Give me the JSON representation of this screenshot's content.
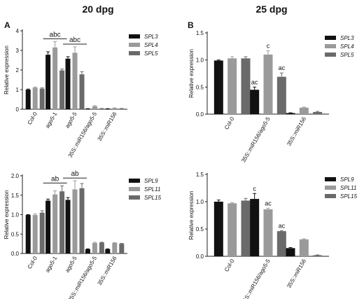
{
  "figure": {
    "col_titles": [
      "20 dpg",
      "25 dpg"
    ],
    "panel_letters": [
      "A",
      "B"
    ]
  },
  "colors": {
    "series": [
      "#111111",
      "#9a9a9a",
      "#6a6a6a"
    ]
  },
  "chart_data": [
    {
      "type": "bar",
      "ylabel": "Relative expression",
      "ylim": [
        0,
        4
      ],
      "yticks": [
        0,
        1,
        2,
        3,
        4
      ],
      "categories": [
        "Col-0",
        "ago5-1",
        "ago5-5",
        "35S::miR156/ago5-5",
        "35S::miR156"
      ],
      "series": [
        {
          "name": "SPL3",
          "values": [
            1.0,
            2.78,
            2.58,
            0.02,
            0.02
          ],
          "errors": [
            0.03,
            0.15,
            0.1,
            0.01,
            0.01
          ]
        },
        {
          "name": "SPL4",
          "values": [
            1.1,
            3.15,
            2.88,
            0.15,
            0.05
          ],
          "errors": [
            0.03,
            0.3,
            0.3,
            0.03,
            0.02
          ]
        },
        {
          "name": "SPL5",
          "values": [
            1.05,
            1.98,
            1.78,
            0.03,
            0.03
          ],
          "errors": [
            0.04,
            0.07,
            0.13,
            0.01,
            0.01
          ]
        }
      ],
      "annotations": [
        {
          "category": 1,
          "text": "abc"
        },
        {
          "category": 2,
          "text": "abc"
        }
      ],
      "legend": "right"
    },
    {
      "type": "bar",
      "ylabel": "Relative expression",
      "ylim": [
        0,
        1.5
      ],
      "yticks": [
        0.0,
        0.5,
        1.0,
        1.5
      ],
      "categories": [
        "Col-0",
        "35S::miR156/ago5-5",
        "35S::miR156"
      ],
      "series": [
        {
          "name": "SPL3",
          "values": [
            0.99,
            0.45,
            0.02
          ],
          "errors": [
            0.01,
            0.05,
            0.005
          ]
        },
        {
          "name": "SPL4",
          "values": [
            1.03,
            1.1,
            0.12
          ],
          "errors": [
            0.03,
            0.07,
            0.01
          ]
        },
        {
          "name": "SPL5",
          "values": [
            1.03,
            0.69,
            0.04
          ],
          "errors": [
            0.03,
            0.07,
            0.01
          ]
        }
      ],
      "bar_labels": [
        [
          null,
          "ac",
          null
        ],
        [
          null,
          "c",
          null
        ],
        [
          null,
          "ac",
          null
        ]
      ],
      "legend": "right"
    },
    {
      "type": "bar",
      "ylabel": "Relative expression",
      "ylim": [
        0,
        2.0
      ],
      "yticks": [
        0.0,
        0.5,
        1.0,
        1.5,
        2.0
      ],
      "categories": [
        "Col-0",
        "ago5-1",
        "ago5-5",
        "35S::miR156/ago5-5",
        "35S::miR156"
      ],
      "series": [
        {
          "name": "SPL9",
          "values": [
            0.99,
            1.36,
            1.38,
            0.11,
            0.11
          ],
          "errors": [
            0.01,
            0.04,
            0.06,
            0.01,
            0.01
          ]
        },
        {
          "name": "SPL11",
          "values": [
            0.99,
            1.52,
            1.65,
            0.27,
            0.27
          ],
          "errors": [
            0.03,
            0.09,
            0.22,
            0.02,
            0.01
          ]
        },
        {
          "name": "SPL15",
          "values": [
            1.05,
            1.6,
            1.68,
            0.28,
            0.25
          ],
          "errors": [
            0.05,
            0.14,
            0.12,
            0.01,
            0.01
          ]
        }
      ],
      "annotations": [
        {
          "category": 1,
          "text": "ab"
        },
        {
          "category": 2,
          "text": "ab"
        }
      ],
      "legend": "right"
    },
    {
      "type": "bar",
      "ylabel": "Relative expression",
      "ylim": [
        0,
        1.5
      ],
      "yticks": [
        0.0,
        0.5,
        1.0,
        1.5
      ],
      "categories": [
        "Col-0",
        "35S::miR156/ago5-5",
        "35S::miR156"
      ],
      "series": [
        {
          "name": "SPL9",
          "values": [
            1.0,
            1.05,
            0.15
          ],
          "errors": [
            0.03,
            0.1,
            0.01
          ]
        },
        {
          "name": "SPL11",
          "values": [
            0.97,
            0.86,
            0.31
          ],
          "errors": [
            0.01,
            0.02,
            0.01
          ]
        },
        {
          "name": "SPL15",
          "values": [
            1.02,
            0.46,
            0.02
          ],
          "errors": [
            0.04,
            0.01,
            0.005
          ]
        }
      ],
      "bar_labels": [
        [
          null,
          "c",
          null
        ],
        [
          null,
          "ac",
          null
        ],
        [
          null,
          "ac",
          null
        ]
      ],
      "legend": "right"
    }
  ]
}
